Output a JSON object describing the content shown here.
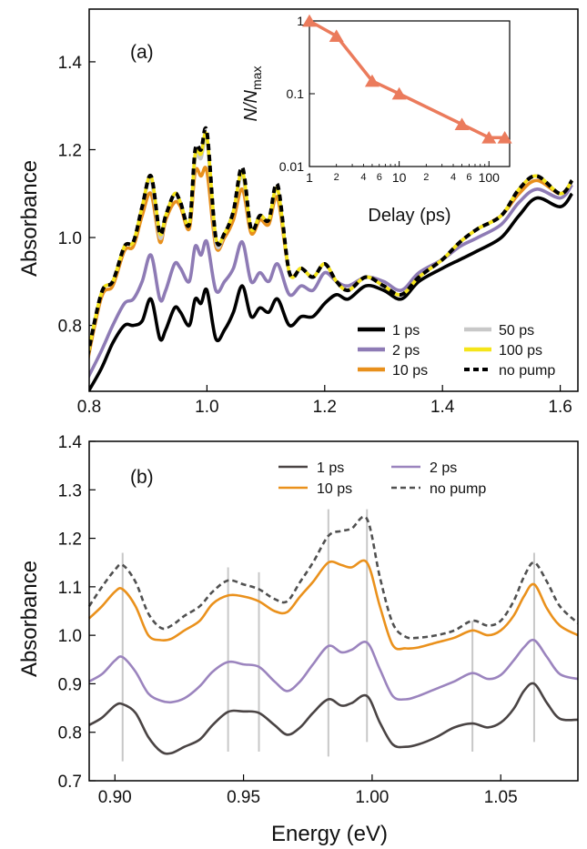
{
  "chart_data": [
    {
      "panel_label": "(a)",
      "type": "line",
      "xlabel": "",
      "ylabel": "Absorbance",
      "xlim": [
        0.8,
        1.63
      ],
      "ylim": [
        0.65,
        1.52
      ],
      "xticks": [
        0.8,
        1.0,
        1.2,
        1.4,
        1.6
      ],
      "xtick_labels": [
        "0.8",
        "1.0",
        "1.2",
        "1.4",
        "1.6"
      ],
      "yticks": [
        0.8,
        1.0,
        1.2,
        1.4
      ],
      "ytick_labels": [
        "0.8",
        "1.0",
        "1.2",
        "1.4"
      ],
      "legend_position": "bottom-right",
      "series": [
        {
          "name": "1 ps",
          "color": "#000000",
          "dash": "solid",
          "x": [
            0.79,
            0.82,
            0.84,
            0.86,
            0.875,
            0.89,
            0.905,
            0.92,
            0.93,
            0.945,
            0.955,
            0.97,
            0.98,
            0.99,
            1.0,
            1.015,
            1.03,
            1.045,
            1.06,
            1.075,
            1.09,
            1.105,
            1.12,
            1.14,
            1.16,
            1.18,
            1.2,
            1.22,
            1.24,
            1.27,
            1.3,
            1.33,
            1.36,
            1.4,
            1.43,
            1.46,
            1.5,
            1.53,
            1.56,
            1.6,
            1.62
          ],
          "y": [
            0.63,
            0.7,
            0.76,
            0.8,
            0.8,
            0.81,
            0.86,
            0.77,
            0.79,
            0.84,
            0.83,
            0.8,
            0.86,
            0.85,
            0.88,
            0.77,
            0.79,
            0.83,
            0.89,
            0.82,
            0.84,
            0.83,
            0.86,
            0.8,
            0.82,
            0.82,
            0.85,
            0.87,
            0.86,
            0.89,
            0.88,
            0.86,
            0.9,
            0.93,
            0.95,
            0.97,
            1.0,
            1.05,
            1.09,
            1.07,
            1.1
          ]
        },
        {
          "name": "2 ps",
          "color": "#8e7bb5",
          "dash": "solid",
          "x": [
            0.79,
            0.82,
            0.84,
            0.86,
            0.875,
            0.89,
            0.905,
            0.92,
            0.93,
            0.945,
            0.955,
            0.97,
            0.98,
            0.99,
            1.0,
            1.015,
            1.03,
            1.045,
            1.06,
            1.075,
            1.09,
            1.105,
            1.12,
            1.14,
            1.16,
            1.18,
            1.2,
            1.22,
            1.24,
            1.27,
            1.3,
            1.33,
            1.36,
            1.4,
            1.43,
            1.46,
            1.5,
            1.53,
            1.56,
            1.6,
            1.62
          ],
          "y": [
            0.66,
            0.74,
            0.8,
            0.85,
            0.86,
            0.9,
            0.96,
            0.86,
            0.88,
            0.94,
            0.93,
            0.9,
            0.98,
            0.96,
            0.99,
            0.88,
            0.9,
            0.93,
            0.99,
            0.9,
            0.92,
            0.9,
            0.94,
            0.87,
            0.89,
            0.88,
            0.92,
            0.9,
            0.89,
            0.91,
            0.9,
            0.88,
            0.92,
            0.95,
            0.98,
            1.0,
            1.03,
            1.08,
            1.11,
            1.09,
            1.12
          ]
        },
        {
          "name": "10 ps",
          "color": "#e8901c",
          "dash": "solid",
          "x": [
            0.79,
            0.82,
            0.84,
            0.86,
            0.875,
            0.89,
            0.905,
            0.92,
            0.93,
            0.945,
            0.955,
            0.97,
            0.98,
            0.99,
            1.0,
            1.015,
            1.03,
            1.045,
            1.06,
            1.075,
            1.09,
            1.105,
            1.12,
            1.14,
            1.16,
            1.18,
            1.2,
            1.22,
            1.24,
            1.27,
            1.3,
            1.33,
            1.36,
            1.4,
            1.43,
            1.46,
            1.5,
            1.53,
            1.56,
            1.6,
            1.62
          ],
          "y": [
            0.67,
            0.86,
            0.89,
            0.97,
            0.98,
            1.05,
            1.1,
            0.99,
            1.04,
            1.08,
            1.07,
            1.02,
            1.15,
            1.14,
            1.15,
            0.98,
            1.0,
            1.04,
            1.11,
            1.01,
            1.04,
            1.03,
            1.09,
            0.92,
            0.93,
            0.91,
            0.94,
            0.9,
            0.88,
            0.91,
            0.89,
            0.87,
            0.91,
            0.95,
            0.99,
            1.02,
            1.05,
            1.1,
            1.13,
            1.1,
            1.13
          ]
        },
        {
          "name": "50 ps",
          "color": "#c8c8c8",
          "dash": "solid",
          "x": [
            0.79,
            0.82,
            0.84,
            0.86,
            0.875,
            0.89,
            0.905,
            0.92,
            0.93,
            0.945,
            0.955,
            0.97,
            0.98,
            0.99,
            1.0,
            1.015,
            1.03,
            1.045,
            1.06,
            1.075,
            1.09,
            1.105,
            1.12,
            1.14,
            1.16,
            1.18,
            1.2,
            1.22,
            1.24,
            1.27,
            1.3,
            1.33,
            1.36,
            1.4,
            1.43,
            1.46,
            1.5,
            1.53,
            1.56,
            1.6,
            1.62
          ],
          "y": [
            0.68,
            0.87,
            0.9,
            0.98,
            0.99,
            1.07,
            1.13,
            1.0,
            1.05,
            1.1,
            1.08,
            1.03,
            1.18,
            1.18,
            1.22,
            0.99,
            1.01,
            1.06,
            1.14,
            1.02,
            1.05,
            1.04,
            1.11,
            0.92,
            0.93,
            0.91,
            0.94,
            0.9,
            0.88,
            0.91,
            0.89,
            0.87,
            0.91,
            0.95,
            0.99,
            1.02,
            1.05,
            1.11,
            1.14,
            1.1,
            1.13
          ]
        },
        {
          "name": "100 ps",
          "color": "#f5e51a",
          "dash": "solid",
          "x": [
            0.79,
            0.82,
            0.84,
            0.86,
            0.875,
            0.89,
            0.905,
            0.92,
            0.93,
            0.945,
            0.955,
            0.97,
            0.98,
            0.99,
            1.0,
            1.015,
            1.03,
            1.045,
            1.06,
            1.075,
            1.09,
            1.105,
            1.12,
            1.14,
            1.16,
            1.18,
            1.2,
            1.22,
            1.24,
            1.27,
            1.3,
            1.33,
            1.36,
            1.4,
            1.43,
            1.46,
            1.5,
            1.53,
            1.56,
            1.6,
            1.62
          ],
          "y": [
            0.68,
            0.87,
            0.9,
            0.98,
            0.99,
            1.07,
            1.14,
            1.01,
            1.05,
            1.1,
            1.08,
            1.03,
            1.19,
            1.19,
            1.23,
            1.0,
            1.01,
            1.06,
            1.15,
            1.02,
            1.05,
            1.04,
            1.11,
            0.92,
            0.93,
            0.91,
            0.94,
            0.9,
            0.88,
            0.91,
            0.89,
            0.87,
            0.91,
            0.95,
            0.99,
            1.02,
            1.05,
            1.11,
            1.14,
            1.1,
            1.13
          ]
        },
        {
          "name": "no pump",
          "color": "#000000",
          "dash": "dashed",
          "x": [
            0.79,
            0.82,
            0.84,
            0.86,
            0.875,
            0.89,
            0.905,
            0.92,
            0.93,
            0.945,
            0.955,
            0.97,
            0.98,
            0.99,
            1.0,
            1.015,
            1.03,
            1.045,
            1.06,
            1.075,
            1.09,
            1.105,
            1.12,
            1.14,
            1.16,
            1.18,
            1.2,
            1.22,
            1.24,
            1.27,
            1.3,
            1.33,
            1.36,
            1.4,
            1.43,
            1.46,
            1.5,
            1.53,
            1.56,
            1.6,
            1.62
          ],
          "y": [
            0.68,
            0.87,
            0.9,
            0.98,
            0.99,
            1.07,
            1.14,
            1.01,
            1.05,
            1.1,
            1.08,
            1.03,
            1.2,
            1.2,
            1.24,
            1.0,
            1.01,
            1.06,
            1.16,
            1.02,
            1.05,
            1.04,
            1.12,
            0.92,
            0.93,
            0.91,
            0.94,
            0.9,
            0.88,
            0.91,
            0.89,
            0.87,
            0.91,
            0.95,
            0.99,
            1.02,
            1.05,
            1.11,
            1.14,
            1.1,
            1.13
          ]
        }
      ],
      "inset": {
        "type": "line",
        "xlabel": "Delay (ps)",
        "ylabel_main": "N/N",
        "ylabel_sub": "max",
        "xscale": "log",
        "yscale": "log",
        "xlim": [
          1,
          170
        ],
        "ylim": [
          0.01,
          1
        ],
        "xticks_major": [
          1,
          10,
          100
        ],
        "xtick_labels_major": [
          "1",
          "10",
          "100"
        ],
        "xticks_minor_labeled": [
          2,
          4,
          6,
          20,
          40,
          60
        ],
        "xtick_labels_minor": [
          "2",
          "4",
          "6",
          "2",
          "4",
          "6"
        ],
        "yticks": [
          0.01,
          0.1,
          1
        ],
        "ytick_labels": [
          "0.01",
          "0.1",
          "1"
        ],
        "color": "#eb7b5c",
        "x": [
          1,
          2,
          5,
          10,
          50,
          100,
          150
        ],
        "y": [
          1.0,
          0.62,
          0.15,
          0.1,
          0.038,
          0.025,
          0.025
        ]
      }
    },
    {
      "panel_label": "(b)",
      "type": "line",
      "xlabel": "Energy (eV)",
      "ylabel": "Absorbance",
      "xlim": [
        0.89,
        1.08
      ],
      "ylim": [
        0.7,
        1.4
      ],
      "xticks": [
        0.9,
        0.95,
        1.0,
        1.05
      ],
      "xtick_labels": [
        "0.90",
        "0.95",
        "1.00",
        "1.05"
      ],
      "yticks": [
        0.7,
        0.8,
        0.9,
        1.0,
        1.1,
        1.2,
        1.3,
        1.4
      ],
      "ytick_labels": [
        "0.7",
        "0.8",
        "0.9",
        "1.0",
        "1.1",
        "1.2",
        "1.3",
        "1.4"
      ],
      "legend_position": "top-right",
      "marker_lines": [
        0.903,
        0.944,
        0.956,
        0.983,
        0.998,
        1.039,
        1.063
      ],
      "marker_color": "#c8c8c8",
      "series": [
        {
          "name": "1 ps",
          "color": "#4a4444",
          "dash": "solid",
          "x": [
            0.89,
            0.895,
            0.9,
            0.903,
            0.908,
            0.913,
            0.918,
            0.922,
            0.927,
            0.933,
            0.938,
            0.944,
            0.95,
            0.956,
            0.962,
            0.967,
            0.972,
            0.977,
            0.983,
            0.988,
            0.992,
            0.998,
            1.003,
            1.008,
            1.013,
            1.018,
            1.025,
            1.032,
            1.039,
            1.045,
            1.05,
            1.055,
            1.059,
            1.063,
            1.068,
            1.073,
            1.08
          ],
          "y": [
            0.815,
            0.83,
            0.855,
            0.858,
            0.84,
            0.79,
            0.76,
            0.757,
            0.77,
            0.785,
            0.815,
            0.842,
            0.843,
            0.84,
            0.815,
            0.795,
            0.81,
            0.84,
            0.868,
            0.855,
            0.86,
            0.875,
            0.82,
            0.775,
            0.77,
            0.775,
            0.79,
            0.81,
            0.818,
            0.81,
            0.82,
            0.848,
            0.885,
            0.9,
            0.86,
            0.828,
            0.826
          ]
        },
        {
          "name": "2 ps",
          "color": "#9b84be",
          "dash": "solid",
          "x": [
            0.89,
            0.895,
            0.9,
            0.903,
            0.908,
            0.913,
            0.918,
            0.922,
            0.927,
            0.933,
            0.938,
            0.944,
            0.95,
            0.956,
            0.962,
            0.967,
            0.972,
            0.977,
            0.983,
            0.988,
            0.992,
            0.998,
            1.003,
            1.008,
            1.013,
            1.018,
            1.025,
            1.032,
            1.039,
            1.045,
            1.05,
            1.055,
            1.059,
            1.063,
            1.068,
            1.073,
            1.08
          ],
          "y": [
            0.905,
            0.92,
            0.948,
            0.955,
            0.925,
            0.88,
            0.865,
            0.862,
            0.87,
            0.895,
            0.925,
            0.945,
            0.94,
            0.935,
            0.905,
            0.885,
            0.905,
            0.94,
            0.978,
            0.965,
            0.97,
            0.985,
            0.93,
            0.875,
            0.868,
            0.875,
            0.89,
            0.905,
            0.922,
            0.91,
            0.918,
            0.948,
            0.975,
            0.99,
            0.955,
            0.92,
            0.91
          ]
        },
        {
          "name": "10 ps",
          "color": "#ea911c",
          "dash": "solid",
          "x": [
            0.89,
            0.895,
            0.9,
            0.903,
            0.908,
            0.913,
            0.918,
            0.922,
            0.927,
            0.933,
            0.938,
            0.944,
            0.95,
            0.956,
            0.962,
            0.967,
            0.972,
            0.977,
            0.983,
            0.988,
            0.992,
            0.998,
            1.003,
            1.008,
            1.013,
            1.018,
            1.025,
            1.032,
            1.039,
            1.045,
            1.05,
            1.055,
            1.059,
            1.063,
            1.068,
            1.073,
            1.08
          ],
          "y": [
            1.035,
            1.06,
            1.09,
            1.095,
            1.06,
            1.0,
            0.99,
            0.993,
            1.01,
            1.03,
            1.065,
            1.082,
            1.08,
            1.07,
            1.05,
            1.048,
            1.08,
            1.11,
            1.15,
            1.145,
            1.14,
            1.15,
            1.06,
            0.98,
            0.973,
            0.975,
            0.985,
            0.995,
            1.01,
            1.0,
            1.01,
            1.04,
            1.08,
            1.105,
            1.055,
            1.02,
            1.0
          ]
        },
        {
          "name": "no pump",
          "color": "#505050",
          "dash": "dashed",
          "x": [
            0.89,
            0.895,
            0.9,
            0.903,
            0.908,
            0.913,
            0.918,
            0.922,
            0.927,
            0.933,
            0.938,
            0.944,
            0.95,
            0.956,
            0.962,
            0.967,
            0.972,
            0.977,
            0.983,
            0.988,
            0.992,
            0.998,
            1.003,
            1.008,
            1.013,
            1.018,
            1.025,
            1.032,
            1.039,
            1.045,
            1.05,
            1.055,
            1.059,
            1.063,
            1.068,
            1.073,
            1.08
          ],
          "y": [
            1.06,
            1.1,
            1.135,
            1.145,
            1.11,
            1.045,
            1.015,
            1.02,
            1.04,
            1.06,
            1.09,
            1.113,
            1.105,
            1.095,
            1.075,
            1.07,
            1.11,
            1.15,
            1.205,
            1.215,
            1.22,
            1.24,
            1.12,
            1.025,
            0.997,
            0.995,
            1.0,
            1.01,
            1.03,
            1.02,
            1.03,
            1.07,
            1.12,
            1.15,
            1.11,
            1.06,
            1.025
          ]
        }
      ]
    }
  ]
}
